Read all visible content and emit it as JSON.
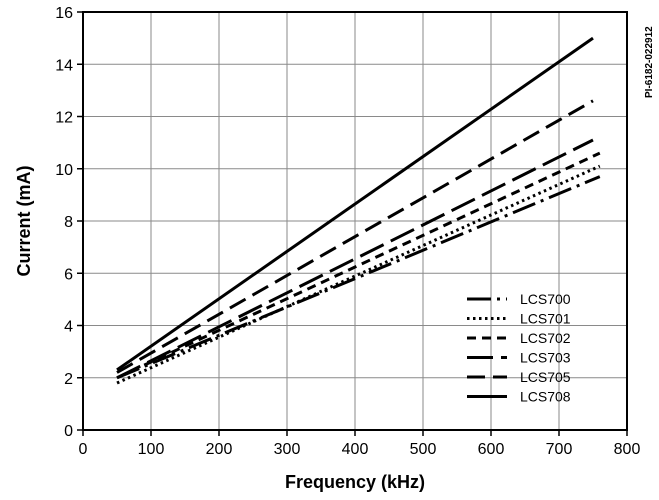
{
  "chart_data": {
    "type": "line",
    "title": "",
    "xlabel": "Frequency (kHz)",
    "ylabel": "Current (mA)",
    "xlim": [
      0,
      800
    ],
    "ylim": [
      0,
      16
    ],
    "xticks": [
      0,
      100,
      200,
      300,
      400,
      500,
      600,
      700,
      800
    ],
    "yticks": [
      0,
      2,
      4,
      6,
      8,
      10,
      12,
      14,
      16
    ],
    "grid": true,
    "legend_position": "bottom-right",
    "side_note": "PI-6182-022912",
    "series": [
      {
        "name": "LCS700",
        "dash": "long-dash-dot",
        "x": [
          50,
          760
        ],
        "y": [
          2.0,
          9.7
        ]
      },
      {
        "name": "LCS701",
        "dash": "dotted",
        "x": [
          50,
          760
        ],
        "y": [
          1.8,
          10.1
        ]
      },
      {
        "name": "LCS702",
        "dash": "short-dash",
        "x": [
          50,
          760
        ],
        "y": [
          2.0,
          10.6
        ]
      },
      {
        "name": "LCS703",
        "dash": "long-dash",
        "x": [
          50,
          750
        ],
        "y": [
          2.0,
          11.1
        ]
      },
      {
        "name": "LCS705",
        "dash": "dash",
        "x": [
          50,
          750
        ],
        "y": [
          2.2,
          12.6
        ]
      },
      {
        "name": "LCS708",
        "dash": "solid",
        "x": [
          50,
          750
        ],
        "y": [
          2.3,
          15.0
        ]
      }
    ]
  }
}
